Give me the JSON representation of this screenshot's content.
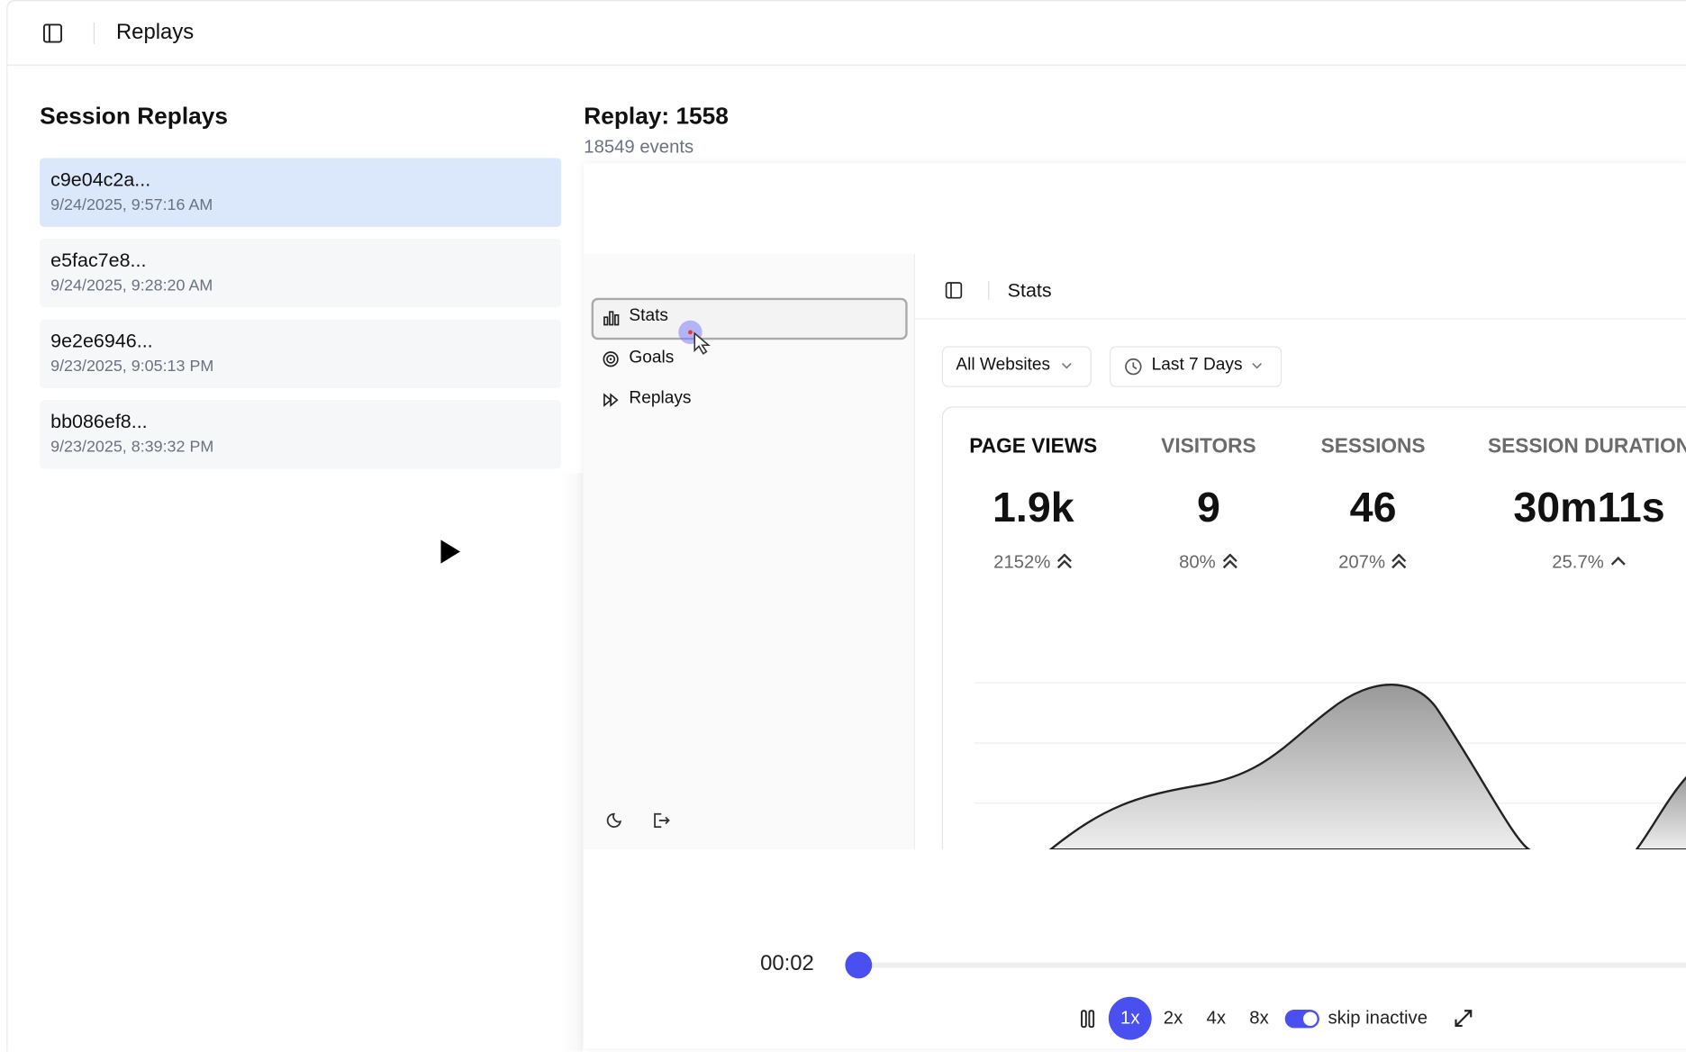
{
  "header": {
    "title": "Replays"
  },
  "sidebar": {
    "title": "Session Replays",
    "sessions": [
      {
        "id": "c9e04c2a...",
        "time": "9/24/2025, 9:57:16 AM"
      },
      {
        "id": "e5fac7e8...",
        "time": "9/24/2025, 9:28:20 AM"
      },
      {
        "id": "9e2e6946...",
        "time": "9/23/2025, 9:05:13 PM"
      },
      {
        "id": "bb086ef8...",
        "time": "9/23/2025, 8:39:32 PM"
      }
    ]
  },
  "replay": {
    "title": "Replay: 1558",
    "events": "18549 events",
    "app": {
      "nav": [
        "Stats",
        "Goals",
        "Replays"
      ],
      "header": "Stats",
      "filters": [
        "All Websites",
        "Last 7 Days"
      ],
      "metrics": [
        {
          "label": "PAGE VIEWS",
          "value": "1.9k",
          "change": "2152%"
        },
        {
          "label": "VISITORS",
          "value": "9",
          "change": "80%"
        },
        {
          "label": "SESSIONS",
          "value": "46",
          "change": "207%"
        },
        {
          "label": "SESSION DURATION",
          "value": "30m11s",
          "change": "25.7%"
        }
      ]
    },
    "player": {
      "time": "00:02",
      "speeds": [
        "1x",
        "2x",
        "4x",
        "8x"
      ],
      "skip": "skip inactive"
    }
  }
}
